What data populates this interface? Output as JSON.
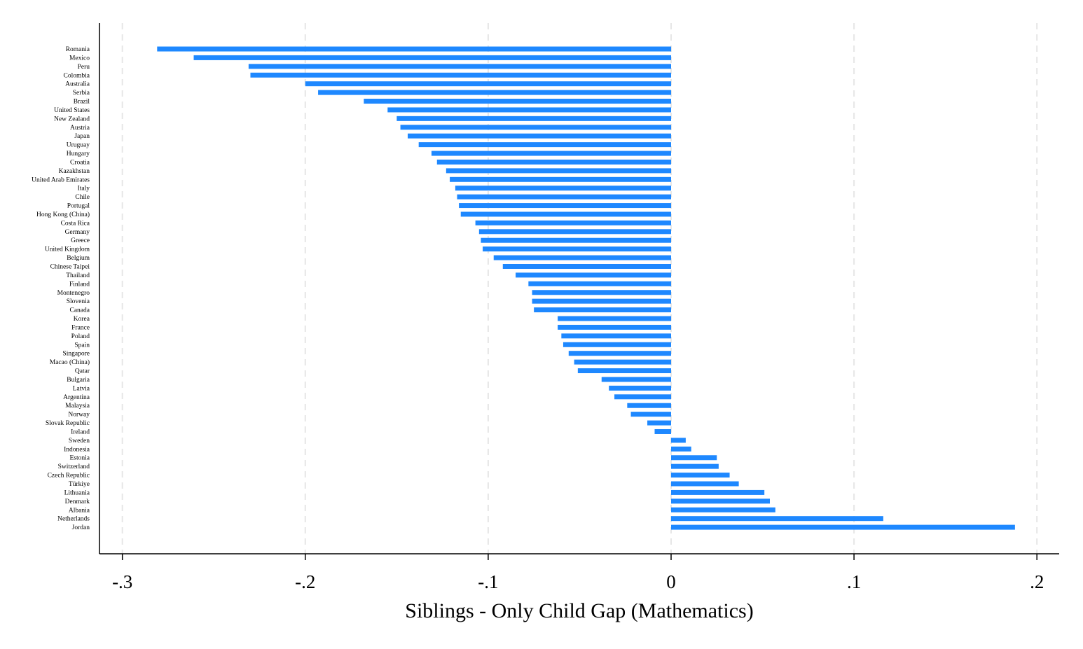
{
  "chart_data": {
    "type": "bar",
    "orientation": "horizontal",
    "title": "",
    "xlabel": "Siblings - Only Child Gap (Mathematics)",
    "ylabel": "",
    "xlim": [
      -0.3125,
      0.2125
    ],
    "xticks": [
      -0.3,
      -0.2,
      -0.1,
      0,
      0.1,
      0.2
    ],
    "xtick_labels": [
      "-.3",
      "-.2",
      "-.1",
      "0",
      ".1",
      ".2"
    ],
    "grid": "vertical dashed",
    "legend": "none",
    "bar_color": "#1e88ff",
    "categories": [
      "Romania",
      "Mexico",
      "Peru",
      "Colombia",
      "Australia",
      "Serbia",
      "Brazil",
      "United States",
      "New Zealand",
      "Austria",
      "Japan",
      "Uruguay",
      "Hungary",
      "Croatia",
      "Kazakhstan",
      "United Arab Emirates",
      "Italy",
      "Chile",
      "Portugal",
      "Hong Kong (China)",
      "Costa Rica",
      "Germany",
      "Greece",
      "United Kingdom",
      "Belgium",
      "Chinese Taipei",
      "Thailand",
      "Finland",
      "Montenegro",
      "Slovenia",
      "Canada",
      "Korea",
      "France",
      "Poland",
      "Spain",
      "Singapore",
      "Macao (China)",
      "Qatar",
      "Bulgaria",
      "Latvia",
      "Argentina",
      "Malaysia",
      "Norway",
      "Slovak Republic",
      "Ireland",
      "Sweden",
      "Indonesia",
      "Estonia",
      "Switzerland",
      "Czech Republic",
      "Türkiye",
      "Lithuania",
      "Denmark",
      "Albania",
      "Netherlands",
      "Jordan"
    ],
    "values": [
      -0.281,
      -0.261,
      -0.231,
      -0.23,
      -0.2,
      -0.193,
      -0.168,
      -0.155,
      -0.15,
      -0.148,
      -0.144,
      -0.138,
      -0.131,
      -0.128,
      -0.123,
      -0.121,
      -0.118,
      -0.117,
      -0.116,
      -0.115,
      -0.107,
      -0.105,
      -0.104,
      -0.103,
      -0.097,
      -0.092,
      -0.085,
      -0.078,
      -0.076,
      -0.076,
      -0.075,
      -0.062,
      -0.062,
      -0.06,
      -0.059,
      -0.056,
      -0.053,
      -0.051,
      -0.038,
      -0.034,
      -0.031,
      -0.024,
      -0.022,
      -0.013,
      -0.009,
      0.008,
      0.011,
      0.025,
      0.026,
      0.032,
      0.037,
      0.051,
      0.054,
      0.057,
      0.116,
      0.188
    ]
  }
}
